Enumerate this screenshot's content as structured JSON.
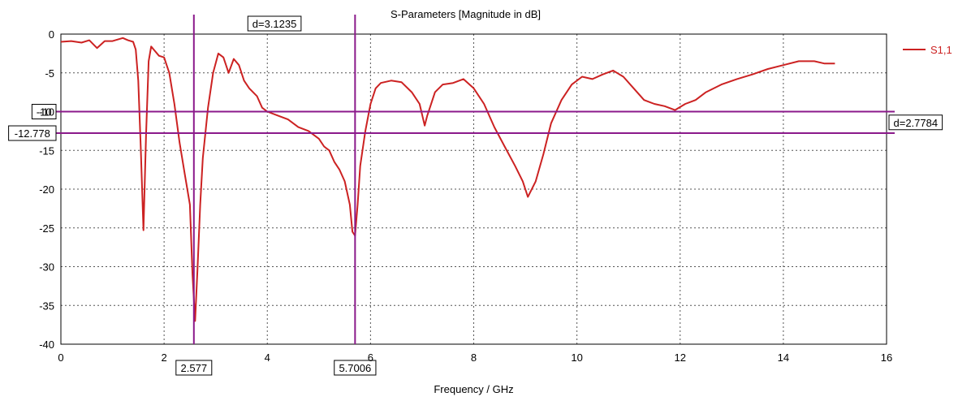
{
  "chart_data": {
    "type": "line",
    "title": "S-Parameters [Magnitude in dB]",
    "xlabel": "Frequency / GHz",
    "ylabel": "",
    "xlim": [
      0,
      16
    ],
    "ylim": [
      -40,
      0
    ],
    "xticks": [
      0,
      2,
      4,
      6,
      8,
      10,
      12,
      14,
      16
    ],
    "yticks": [
      0,
      -5,
      -10,
      -15,
      -20,
      -25,
      -30,
      -35,
      -40
    ],
    "grid": true,
    "legend_position": "top-right",
    "series": [
      {
        "name": "S1,1",
        "color": "#cc2222",
        "x": [
          0,
          0.2,
          0.4,
          0.55,
          0.7,
          0.85,
          1.0,
          1.1,
          1.2,
          1.3,
          1.4,
          1.45,
          1.5,
          1.55,
          1.6,
          1.65,
          1.7,
          1.75,
          1.8,
          1.9,
          2.0,
          2.1,
          2.2,
          2.3,
          2.4,
          2.5,
          2.55,
          2.6,
          2.65,
          2.7,
          2.75,
          2.85,
          2.95,
          3.05,
          3.15,
          3.25,
          3.35,
          3.45,
          3.55,
          3.65,
          3.8,
          3.9,
          4.0,
          4.2,
          4.4,
          4.6,
          4.8,
          5.0,
          5.1,
          5.2,
          5.3,
          5.4,
          5.5,
          5.6,
          5.65,
          5.7,
          5.75,
          5.8,
          5.9,
          6.0,
          6.1,
          6.2,
          6.4,
          6.6,
          6.8,
          6.95,
          7.05,
          7.1,
          7.15,
          7.25,
          7.4,
          7.6,
          7.8,
          8.0,
          8.2,
          8.4,
          8.6,
          8.8,
          8.95,
          9.05,
          9.2,
          9.35,
          9.5,
          9.7,
          9.9,
          10.1,
          10.3,
          10.5,
          10.7,
          10.9,
          11.1,
          11.3,
          11.5,
          11.7,
          11.9,
          12.1,
          12.3,
          12.5,
          12.8,
          13.1,
          13.4,
          13.7,
          14.0,
          14.3,
          14.6,
          14.8,
          15.0
        ],
        "values": [
          -1.0,
          -0.9,
          -1.1,
          -0.8,
          -1.8,
          -0.9,
          -0.9,
          -0.7,
          -0.5,
          -0.8,
          -1.0,
          -2.0,
          -6.0,
          -15.0,
          -25.3,
          -13.0,
          -3.5,
          -1.6,
          -2.0,
          -2.8,
          -3.0,
          -5.0,
          -9.0,
          -14.0,
          -18.0,
          -22.0,
          -31.0,
          -37.0,
          -30.0,
          -22.0,
          -16.0,
          -9.5,
          -5.0,
          -2.5,
          -3.0,
          -5.0,
          -3.2,
          -4.0,
          -6.0,
          -7.0,
          -8.0,
          -9.5,
          -10.0,
          -10.5,
          -11.0,
          -12.0,
          -12.5,
          -13.5,
          -14.5,
          -15.0,
          -16.5,
          -17.5,
          -19.0,
          -22.0,
          -25.5,
          -26.0,
          -22.0,
          -17.0,
          -12.5,
          -9.0,
          -7.0,
          -6.3,
          -6.0,
          -6.2,
          -7.5,
          -9.0,
          -11.8,
          -10.5,
          -9.5,
          -7.5,
          -6.5,
          -6.3,
          -5.8,
          -7.0,
          -9.0,
          -12.0,
          -14.5,
          -17.0,
          -19.0,
          -21.0,
          -19.0,
          -15.5,
          -11.5,
          -8.5,
          -6.5,
          -5.5,
          -5.8,
          -5.2,
          -4.7,
          -5.5,
          -7.0,
          -8.5,
          -9.0,
          -9.3,
          -9.8,
          -9.0,
          -8.5,
          -7.5,
          -6.5,
          -5.8,
          -5.2,
          -4.5,
          -4.0,
          -3.5,
          -3.5,
          -3.8,
          -3.8
        ]
      }
    ],
    "markers": {
      "vertical": [
        {
          "x": 2.577,
          "label": "2.577"
        },
        {
          "x": 5.7006,
          "label": "5.7006"
        }
      ],
      "vertical_delta_label": "d=3.1235",
      "horizontal": [
        {
          "y": -10,
          "label": "-10"
        },
        {
          "y": -12.778,
          "label": "-12.778"
        }
      ],
      "horizontal_delta_label": "d=2.7784",
      "marker_color": "#8b1a8b"
    }
  }
}
